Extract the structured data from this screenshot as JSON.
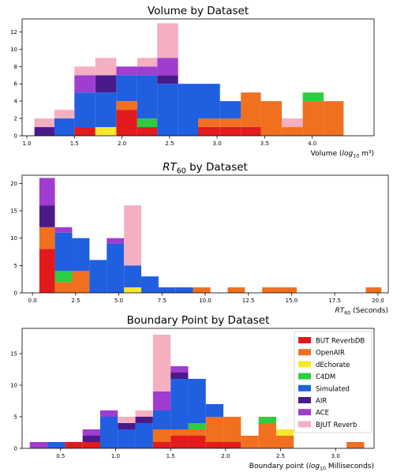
{
  "colors": {
    "BUT ReverbDB": "#e31a1c",
    "OpenAIR": "#f07020",
    "dEchorate": "#f7e82a",
    "C4DM": "#2ecc40",
    "Simulated": "#1f5fe0",
    "AIR": "#4b1a8a",
    "ACE": "#a03cd0",
    "BJUT Reverb": "#f4b0c0"
  },
  "chart_data": [
    {
      "type": "bar",
      "stacked": true,
      "title": "Volume by Dataset",
      "xlabel": "Volume (log10 m³)",
      "xlim": [
        0.95,
        4.65
      ],
      "ylim": [
        0,
        13.5
      ],
      "xticks": [
        "1.0",
        "1.5",
        "2.0",
        "2.5",
        "3.0",
        "3.5",
        "4.0"
      ],
      "xtick_values": [
        1.0,
        1.5,
        2.0,
        2.5,
        3.0,
        3.5,
        4.0
      ],
      "yticks": [
        "0",
        "2",
        "4",
        "6",
        "8",
        "10",
        "12"
      ],
      "ytick_values": [
        0,
        2,
        4,
        6,
        8,
        10,
        12
      ],
      "bin_edges": [
        1.08,
        1.29,
        1.5,
        1.72,
        1.94,
        2.16,
        2.37,
        2.59,
        2.8,
        3.03,
        3.25,
        3.46,
        3.68,
        3.9,
        4.12,
        4.33
      ],
      "series": [
        {
          "name": "BUT ReverbDB",
          "values": [
            0,
            0,
            1,
            0,
            3,
            1,
            0,
            0,
            1,
            1,
            1,
            0,
            0,
            0,
            0
          ]
        },
        {
          "name": "OpenAIR",
          "values": [
            0,
            0,
            0,
            0,
            1,
            0,
            0,
            0,
            1,
            1,
            4,
            4,
            1,
            4,
            4
          ]
        },
        {
          "name": "dEchorate",
          "values": [
            0,
            0,
            0,
            1,
            0,
            0,
            0,
            0,
            0,
            0,
            0,
            0,
            0,
            0,
            0
          ]
        },
        {
          "name": "C4DM",
          "values": [
            0,
            0,
            0,
            0,
            0,
            1,
            0,
            0,
            0,
            0,
            0,
            0,
            0,
            1,
            0
          ]
        },
        {
          "name": "Simulated",
          "values": [
            0,
            2,
            4,
            4,
            3,
            5,
            6,
            6,
            4,
            2,
            0,
            0,
            0,
            0,
            0
          ]
        },
        {
          "name": "AIR",
          "values": [
            1,
            0,
            0,
            2,
            0,
            0,
            1,
            0,
            0,
            0,
            0,
            0,
            0,
            0,
            0
          ]
        },
        {
          "name": "ACE",
          "values": [
            0,
            0,
            2,
            0,
            1,
            1,
            2,
            0,
            0,
            0,
            0,
            0,
            0,
            0,
            0
          ]
        },
        {
          "name": "BJUT Reverb",
          "values": [
            1,
            1,
            1,
            2,
            0,
            1,
            4,
            0,
            0,
            0,
            0,
            0,
            1,
            0,
            0
          ]
        }
      ]
    },
    {
      "type": "bar",
      "stacked": true,
      "title": "RT60 by Dataset",
      "xlabel": "RT60 (Seconds)",
      "xlim": [
        -0.6,
        20.6
      ],
      "ylim": [
        0,
        21.5
      ],
      "xticks": [
        "0.0",
        "2.5",
        "5.0",
        "7.5",
        "10.0",
        "12.5",
        "15.0",
        "17.5",
        "20.0"
      ],
      "xtick_values": [
        0,
        2.5,
        5,
        7.5,
        10,
        12.5,
        15,
        17.5,
        20
      ],
      "yticks": [
        "0",
        "5",
        "10",
        "15",
        "20"
      ],
      "ytick_values": [
        0,
        5,
        10,
        15,
        20
      ],
      "bin_edges": [
        0.4,
        1.3,
        2.3,
        3.3,
        4.3,
        5.3,
        6.3,
        7.3,
        8.3,
        9.3,
        10.3,
        11.3,
        12.3,
        13.3,
        14.3,
        15.3,
        16.3,
        17.3,
        18.3,
        19.3,
        20.2
      ],
      "series": [
        {
          "name": "BUT ReverbDB",
          "values": [
            8,
            0,
            0,
            0,
            0,
            0,
            0,
            0,
            0,
            0,
            0,
            0,
            0,
            0,
            0,
            0,
            0,
            0,
            0,
            0
          ]
        },
        {
          "name": "OpenAIR",
          "values": [
            4,
            2,
            4,
            0,
            0,
            0,
            0,
            0,
            0,
            1,
            0,
            1,
            0,
            1,
            1,
            0,
            0,
            0,
            0,
            1
          ]
        },
        {
          "name": "dEchorate",
          "values": [
            0,
            0,
            0,
            0,
            0,
            1,
            0,
            0,
            0,
            0,
            0,
            0,
            0,
            0,
            0,
            0,
            0,
            0,
            0,
            0
          ]
        },
        {
          "name": "C4DM",
          "values": [
            0,
            2,
            0,
            0,
            0,
            0,
            0,
            0,
            0,
            0,
            0,
            0,
            0,
            0,
            0,
            0,
            0,
            0,
            0,
            0
          ]
        },
        {
          "name": "Simulated",
          "values": [
            0,
            7,
            6,
            6,
            9,
            4,
            3,
            1,
            1,
            0,
            0,
            0,
            0,
            0,
            0,
            0,
            0,
            0,
            0,
            0
          ]
        },
        {
          "name": "AIR",
          "values": [
            4,
            0,
            0,
            0,
            0,
            0,
            0,
            0,
            0,
            0,
            0,
            0,
            0,
            0,
            0,
            0,
            0,
            0,
            0,
            0
          ]
        },
        {
          "name": "ACE",
          "values": [
            5,
            1,
            0,
            0,
            1,
            0,
            0,
            0,
            0,
            0,
            0,
            0,
            0,
            0,
            0,
            0,
            0,
            0,
            0,
            0
          ]
        },
        {
          "name": "BJUT Reverb",
          "values": [
            0,
            0,
            0,
            0,
            0,
            11,
            0,
            0,
            0,
            0,
            0,
            0,
            0,
            0,
            0,
            0,
            0,
            0,
            0,
            0
          ]
        }
      ]
    },
    {
      "type": "bar",
      "stacked": true,
      "title": "Boundary Point by Dataset",
      "xlabel": "Boundary point (log10 Milliseconds)",
      "xlim": [
        0.15,
        3.35
      ],
      "ylim": [
        0,
        19
      ],
      "xticks": [
        "0.5",
        "1.0",
        "1.5",
        "2.0",
        "2.5",
        "3.0"
      ],
      "xtick_values": [
        0.5,
        1.0,
        1.5,
        2.0,
        2.5,
        3.0
      ],
      "yticks": [
        "0",
        "5",
        "10",
        "15"
      ],
      "ytick_values": [
        0,
        5,
        10,
        15
      ],
      "bin_edges": [
        0.22,
        0.38,
        0.54,
        0.7,
        0.86,
        1.02,
        1.18,
        1.34,
        1.5,
        1.66,
        1.82,
        1.98,
        2.14,
        2.3,
        2.46,
        2.62,
        2.78,
        2.94,
        3.1,
        3.26
      ],
      "series": [
        {
          "name": "BUT ReverbDB",
          "values": [
            0,
            0,
            1,
            1,
            0,
            0,
            0,
            1,
            2,
            2,
            1,
            1,
            0,
            0,
            0,
            0,
            0,
            0,
            0
          ]
        },
        {
          "name": "OpenAIR",
          "values": [
            0,
            0,
            0,
            0,
            0,
            0,
            0,
            2,
            1,
            1,
            4,
            4,
            2,
            4,
            2,
            0,
            0,
            0,
            1
          ]
        },
        {
          "name": "dEchorate",
          "values": [
            0,
            0,
            0,
            0,
            0,
            0,
            0,
            0,
            0,
            0,
            0,
            0,
            0,
            0,
            1,
            0,
            0,
            0,
            0
          ]
        },
        {
          "name": "C4DM",
          "values": [
            0,
            0,
            0,
            0,
            0,
            0,
            0,
            0,
            0,
            1,
            0,
            0,
            0,
            1,
            0,
            0,
            0,
            0,
            0
          ]
        },
        {
          "name": "Simulated",
          "values": [
            0,
            1,
            0,
            0,
            5,
            3,
            4,
            3,
            8,
            7,
            2,
            0,
            0,
            0,
            0,
            0,
            0,
            0,
            0
          ]
        },
        {
          "name": "AIR",
          "values": [
            0,
            0,
            0,
            1,
            0,
            1,
            1,
            0,
            1,
            0,
            0,
            0,
            0,
            0,
            0,
            0,
            0,
            0,
            0
          ]
        },
        {
          "name": "ACE",
          "values": [
            1,
            0,
            0,
            1,
            1,
            0,
            0,
            3,
            1,
            0,
            0,
            0,
            0,
            0,
            0,
            0,
            0,
            0,
            0
          ]
        },
        {
          "name": "BJUT Reverb",
          "values": [
            0,
            0,
            0,
            0,
            0,
            1,
            1,
            9,
            0,
            0,
            0,
            0,
            0,
            0,
            0,
            0,
            0,
            0,
            0
          ]
        }
      ],
      "legend": {
        "position": "upper right",
        "entries": [
          "BUT ReverbDB",
          "OpenAIR",
          "dEchorate",
          "C4DM",
          "Simulated",
          "AIR",
          "ACE",
          "BJUT Reverb"
        ]
      }
    }
  ]
}
